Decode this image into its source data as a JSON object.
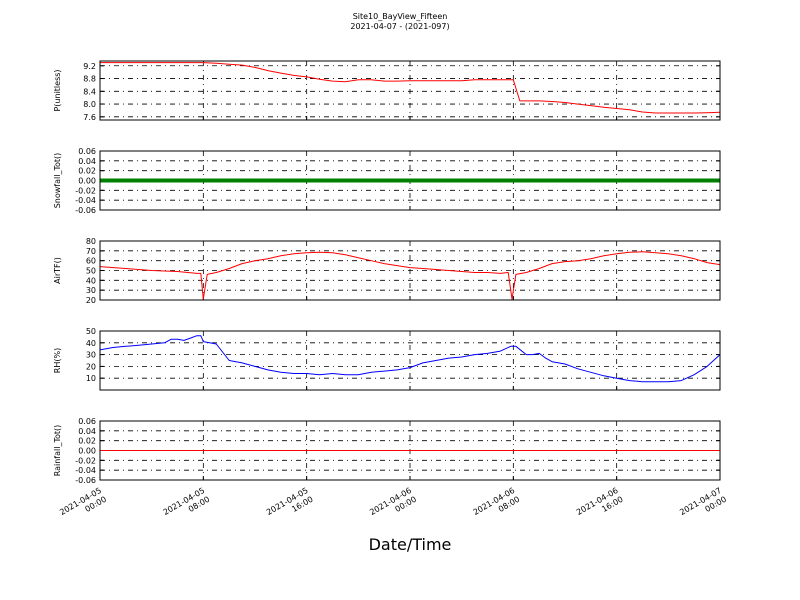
{
  "title": "Site10_BayView_Fifteen",
  "subtitle": "2021-04-07 - (2021-097)",
  "xlabel": "Date/Time",
  "x_ticks": [
    {
      "line1": "2021-04-05",
      "line2": "00:00",
      "hours": 0
    },
    {
      "line1": "2021-04-05",
      "line2": "08:00",
      "hours": 8
    },
    {
      "line1": "2021-04-05",
      "line2": "16:00",
      "hours": 16
    },
    {
      "line1": "2021-04-06",
      "line2": "00:00",
      "hours": 24
    },
    {
      "line1": "2021-04-06",
      "line2": "08:00",
      "hours": 32
    },
    {
      "line1": "2021-04-06",
      "line2": "16:00",
      "hours": 40
    },
    {
      "line1": "2021-04-07",
      "line2": "00:00",
      "hours": 48
    }
  ],
  "chart_data": [
    {
      "type": "line",
      "ylabel": "P(unitless)",
      "ylim": [
        7.5,
        9.35
      ],
      "yticks": [
        "9.2",
        "8.8",
        "8.4",
        "8.0",
        "7.6"
      ],
      "ytick_values": [
        9.2,
        8.8,
        8.4,
        8.0,
        7.6
      ],
      "color": "#ff0000",
      "grid": true,
      "x": [
        0,
        3,
        6,
        8,
        9,
        10,
        11,
        12,
        13,
        14,
        15,
        16,
        17,
        18,
        19,
        20,
        21,
        22,
        23,
        24,
        25,
        26,
        27,
        28,
        29,
        30,
        31,
        32,
        32.5,
        33,
        34,
        35,
        36,
        37,
        38,
        39,
        40,
        41,
        42,
        43,
        44,
        45,
        46,
        47,
        48
      ],
      "y": [
        9.3,
        9.3,
        9.3,
        9.3,
        9.28,
        9.25,
        9.22,
        9.15,
        9.05,
        8.97,
        8.9,
        8.85,
        8.78,
        8.72,
        8.7,
        8.76,
        8.76,
        8.72,
        8.72,
        8.73,
        8.73,
        8.73,
        8.73,
        8.73,
        8.76,
        8.76,
        8.76,
        8.76,
        8.1,
        8.1,
        8.1,
        8.08,
        8.05,
        8.0,
        7.95,
        7.9,
        7.86,
        7.82,
        7.75,
        7.72,
        7.72,
        7.72,
        7.72,
        7.73,
        7.74
      ]
    },
    {
      "type": "line",
      "ylabel": "Snowfall_Tot()",
      "ylim": [
        -0.06,
        0.06
      ],
      "yticks": [
        "0.06",
        "0.04",
        "0.02",
        "0.00",
        "-0.02",
        "-0.04",
        "-0.06"
      ],
      "ytick_values": [
        0.06,
        0.04,
        0.02,
        0.0,
        -0.02,
        -0.04,
        -0.06
      ],
      "color": "#008000",
      "line_width": 4,
      "grid": true,
      "x": [
        0,
        48
      ],
      "y": [
        0.0,
        0.0
      ]
    },
    {
      "type": "line",
      "ylabel": "AirTF()",
      "ylim": [
        20,
        80
      ],
      "yticks": [
        "80",
        "70",
        "60",
        "50",
        "40",
        "30",
        "20"
      ],
      "ytick_values": [
        80,
        70,
        60,
        50,
        40,
        30,
        20
      ],
      "color": "#ff0000",
      "grid": true,
      "x": [
        0,
        2,
        4,
        6,
        7.5,
        7.8,
        8.0,
        8.3,
        9,
        10,
        11,
        12,
        13,
        14,
        15,
        16,
        17,
        18,
        19,
        20,
        21,
        22,
        23,
        24,
        25,
        26,
        27,
        28,
        29,
        30,
        31,
        31.6,
        31.9,
        32.2,
        33,
        34,
        35,
        36,
        37,
        38,
        39,
        40,
        41,
        42,
        43,
        44,
        45,
        46,
        47,
        48
      ],
      "y": [
        54,
        52,
        50,
        49,
        47,
        47,
        21,
        46,
        48,
        52,
        57,
        60,
        62,
        65,
        67,
        68,
        68.5,
        68,
        66,
        63,
        60,
        57,
        55,
        53,
        52,
        51,
        50,
        49,
        48,
        48,
        47,
        48,
        21,
        46,
        48,
        52,
        57,
        59,
        60,
        62,
        65,
        67,
        68.5,
        69,
        68,
        67,
        65,
        62,
        58,
        56
      ]
    },
    {
      "type": "line",
      "ylabel": "RH(%)",
      "ylim": [
        0,
        50
      ],
      "yticks": [
        "50",
        "40",
        "30",
        "20",
        "10"
      ],
      "ytick_values": [
        50,
        40,
        30,
        20,
        10
      ],
      "color": "#0000ff",
      "grid": true,
      "x": [
        0,
        1,
        2,
        3,
        4,
        5,
        5.5,
        6,
        6.5,
        7,
        7.5,
        7.8,
        8,
        9,
        10,
        11,
        12,
        13,
        14,
        15,
        16,
        17,
        18,
        19,
        20,
        21,
        22,
        23,
        24,
        25,
        26,
        27,
        28,
        29,
        30,
        30.5,
        31,
        31.8,
        32.2,
        33,
        33.5,
        34,
        34.5,
        35,
        36,
        37,
        38,
        39,
        39.5,
        40,
        41,
        42,
        43,
        44,
        45,
        46,
        47,
        48
      ],
      "y": [
        34,
        36,
        37,
        38,
        39,
        40,
        43,
        43,
        42,
        44,
        46,
        46,
        41,
        39,
        25,
        23,
        20,
        17,
        15,
        14,
        14,
        13,
        14,
        13,
        13,
        15,
        16,
        17,
        19,
        23,
        25,
        27,
        28,
        30,
        31,
        32,
        33,
        37,
        37,
        30,
        30,
        31,
        27,
        24,
        22,
        18,
        15,
        12,
        11,
        10,
        8,
        7,
        7,
        7,
        8,
        13,
        20,
        30
      ]
    },
    {
      "type": "line",
      "ylabel": "Rainfall_Tot()",
      "ylim": [
        -0.06,
        0.06
      ],
      "yticks": [
        "0.06",
        "0.04",
        "0.02",
        "0.00",
        "-0.02",
        "-0.04",
        "-0.06"
      ],
      "ytick_values": [
        0.06,
        0.04,
        0.02,
        0.0,
        -0.02,
        -0.04,
        -0.06
      ],
      "color": "#ff0000",
      "grid": true,
      "x": [
        0,
        48
      ],
      "y": [
        0.0,
        0.0
      ]
    }
  ]
}
